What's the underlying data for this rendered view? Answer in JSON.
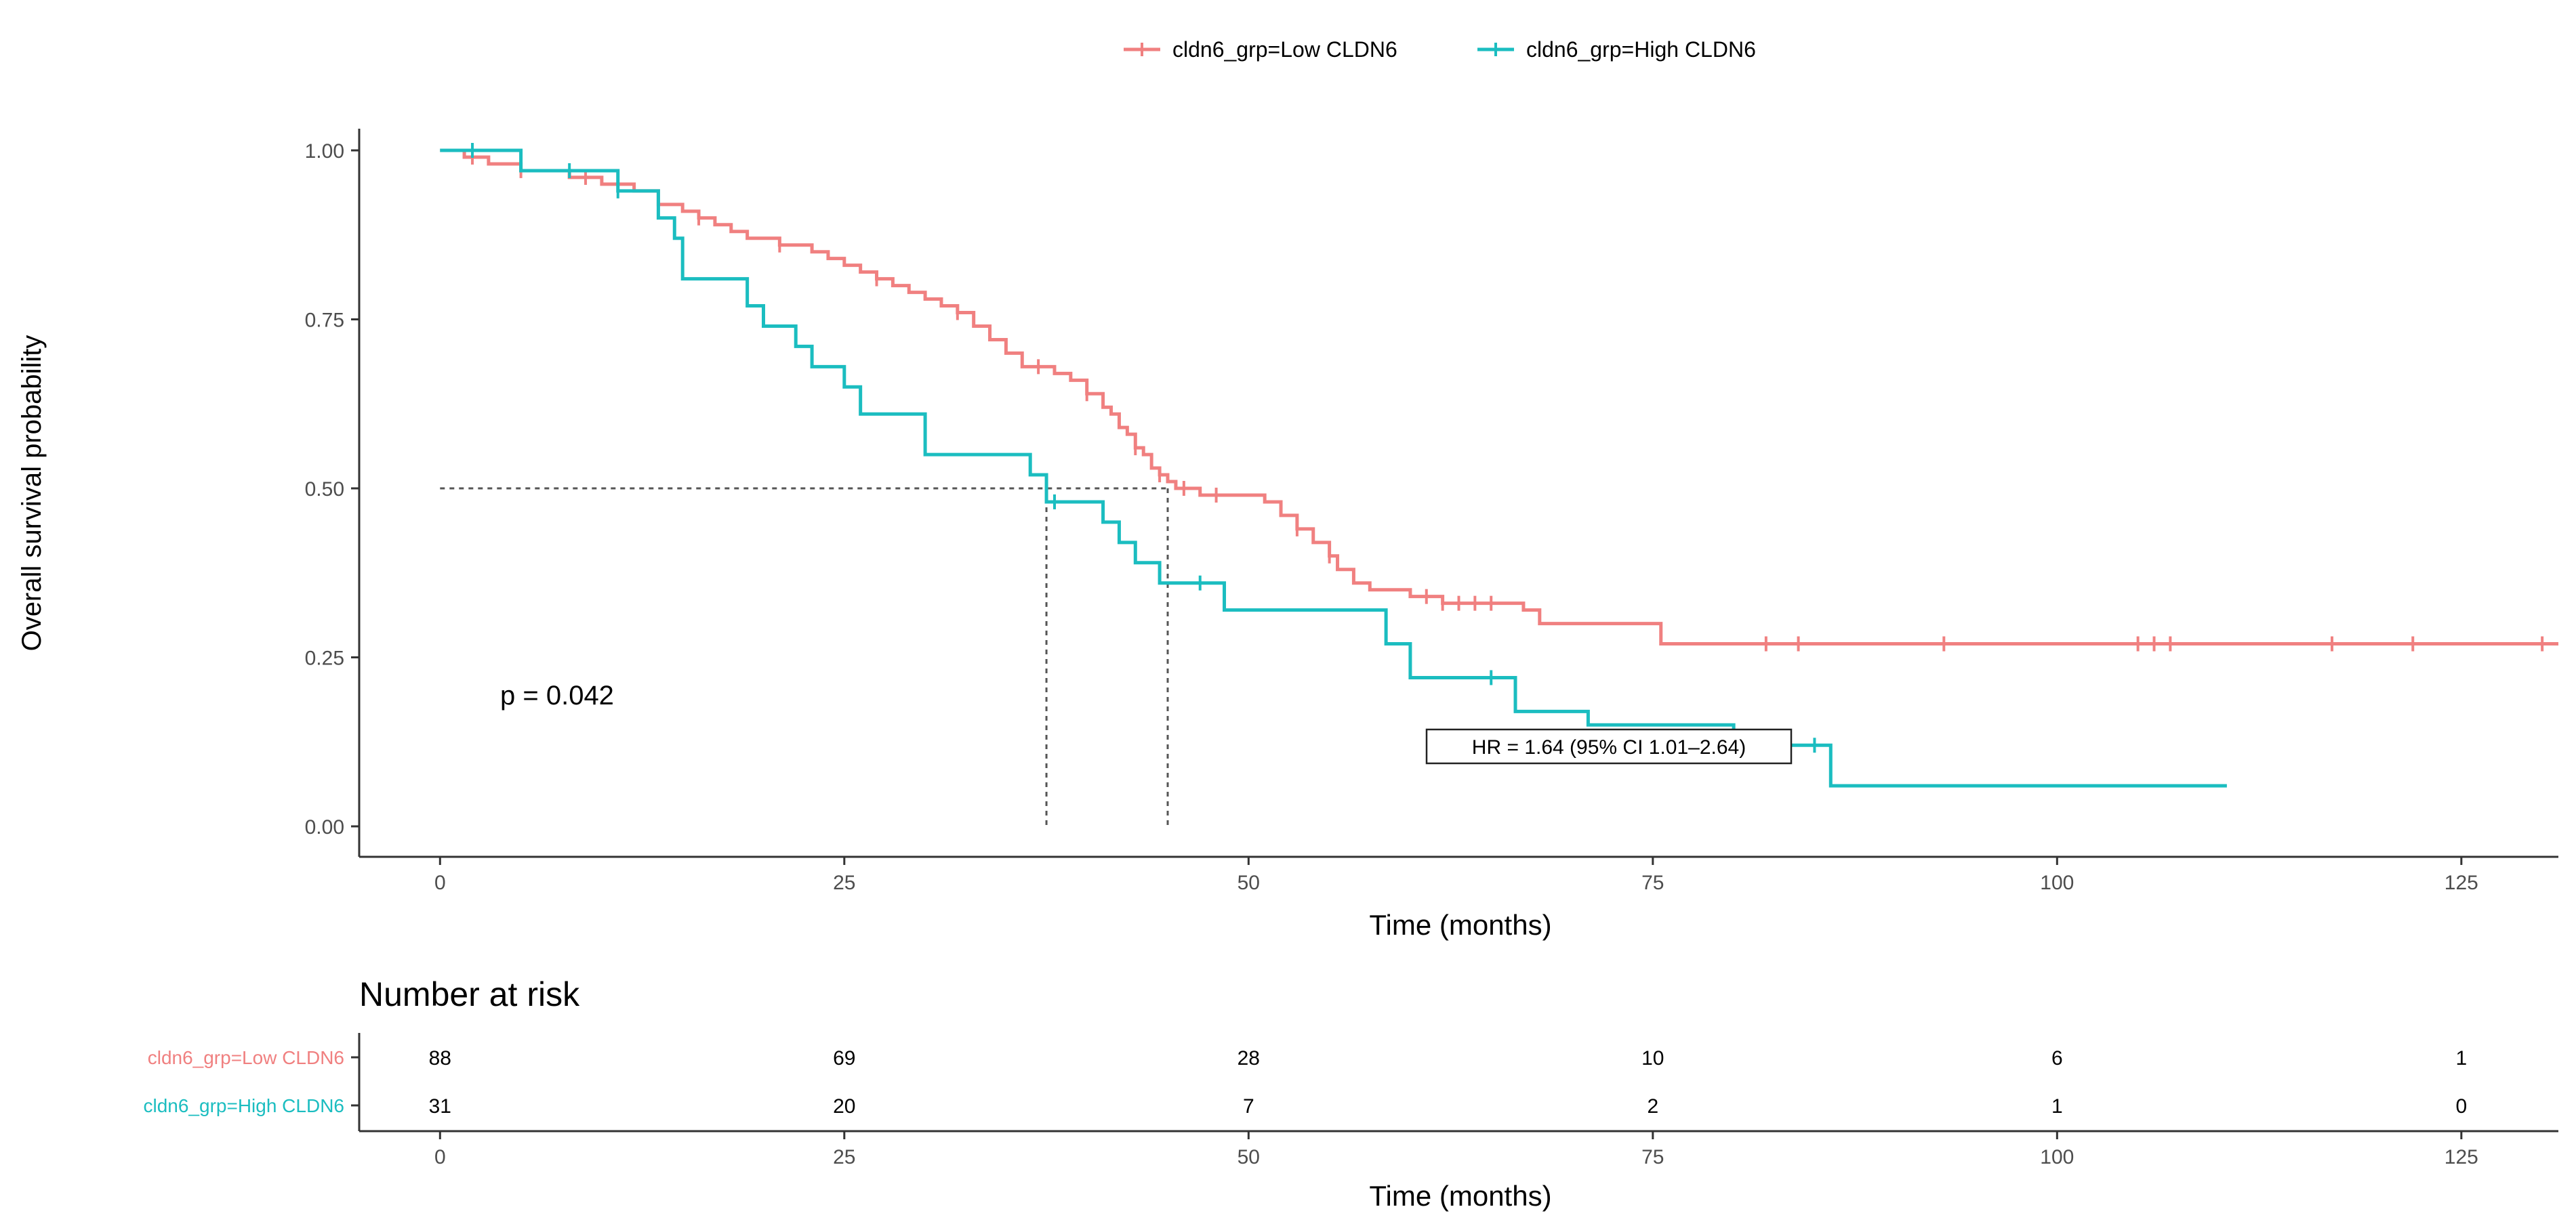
{
  "colors": {
    "low": "#F08080",
    "high": "#1BBDC0",
    "axis": "#333333",
    "tick_label": "#4D4D4D",
    "text": "#000000",
    "reference": "#555555",
    "background": "#FFFFFF"
  },
  "legend": {
    "position": "top",
    "items": [
      {
        "label": "cldn6_grp=Low CLDN6",
        "color": "#F08080"
      },
      {
        "label": "cldn6_grp=High CLDN6",
        "color": "#1BBDC0"
      }
    ]
  },
  "annotations": {
    "pvalue": "p = 0.042",
    "hr": "HR = 1.64 (95% CI 1.01–2.64)"
  },
  "chart_data": [
    {
      "type": "line",
      "subtype": "kaplan-meier step",
      "xlabel": "Time (months)",
      "ylabel": "Overall survival probability",
      "xlim": [
        -5,
        131
      ],
      "ylim": [
        0,
        1
      ],
      "xticks": [
        0,
        25,
        50,
        75,
        100,
        125
      ],
      "yticks": [
        0,
        0.25,
        0.5,
        0.75,
        1
      ],
      "ytick_labels": [
        "0.00",
        "0.25",
        "0.50",
        "0.75",
        "1.00"
      ],
      "grid": false,
      "median_reference": {
        "y": 0.5,
        "medians": [
          {
            "series": "cldn6_grp=High CLDN6",
            "x": 37.5
          },
          {
            "series": "cldn6_grp=Low CLDN6",
            "x": 45
          }
        ]
      },
      "series": [
        {
          "name": "cldn6_grp=Low CLDN6",
          "color": "#F08080",
          "steps": [
            [
              0,
              1.0
            ],
            [
              1.5,
              0.99
            ],
            [
              3,
              0.98
            ],
            [
              5,
              0.97
            ],
            [
              8,
              0.96
            ],
            [
              10,
              0.95
            ],
            [
              12,
              0.94
            ],
            [
              13.5,
              0.92
            ],
            [
              15,
              0.91
            ],
            [
              16,
              0.9
            ],
            [
              17,
              0.89
            ],
            [
              18,
              0.88
            ],
            [
              19,
              0.87
            ],
            [
              21,
              0.86
            ],
            [
              23,
              0.85
            ],
            [
              24,
              0.84
            ],
            [
              25,
              0.83
            ],
            [
              26,
              0.82
            ],
            [
              27,
              0.81
            ],
            [
              28,
              0.8
            ],
            [
              29,
              0.79
            ],
            [
              30,
              0.78
            ],
            [
              31,
              0.77
            ],
            [
              32,
              0.76
            ],
            [
              33,
              0.74
            ],
            [
              34,
              0.72
            ],
            [
              35,
              0.7
            ],
            [
              36,
              0.68
            ],
            [
              38,
              0.67
            ],
            [
              39,
              0.66
            ],
            [
              40,
              0.64
            ],
            [
              41,
              0.62
            ],
            [
              41.5,
              0.61
            ],
            [
              42,
              0.59
            ],
            [
              42.5,
              0.58
            ],
            [
              43,
              0.56
            ],
            [
              43.5,
              0.55
            ],
            [
              44,
              0.53
            ],
            [
              44.5,
              0.52
            ],
            [
              45,
              0.51
            ],
            [
              45.5,
              0.5
            ],
            [
              47,
              0.49
            ],
            [
              51,
              0.48
            ],
            [
              52,
              0.46
            ],
            [
              53,
              0.44
            ],
            [
              54,
              0.42
            ],
            [
              55,
              0.4
            ],
            [
              55.5,
              0.38
            ],
            [
              56.5,
              0.36
            ],
            [
              57.5,
              0.35
            ],
            [
              60,
              0.34
            ],
            [
              62,
              0.33
            ],
            [
              67,
              0.32
            ],
            [
              68,
              0.3
            ],
            [
              75.5,
              0.27
            ],
            [
              131,
              0.27
            ]
          ],
          "censor_x": [
            2,
            5,
            9,
            16,
            21,
            27,
            32,
            37,
            40,
            43,
            44.5,
            46,
            48,
            53,
            55,
            61,
            62,
            63,
            64,
            65,
            82,
            84,
            93,
            105,
            106,
            107,
            117,
            122,
            130
          ]
        },
        {
          "name": "cldn6_grp=High CLDN6",
          "color": "#1BBDC0",
          "steps": [
            [
              0,
              1.0
            ],
            [
              5,
              0.97
            ],
            [
              11,
              0.94
            ],
            [
              13.5,
              0.9
            ],
            [
              14.5,
              0.87
            ],
            [
              15,
              0.81
            ],
            [
              19,
              0.77
            ],
            [
              20,
              0.74
            ],
            [
              22,
              0.71
            ],
            [
              23,
              0.68
            ],
            [
              25,
              0.65
            ],
            [
              26,
              0.61
            ],
            [
              30,
              0.55
            ],
            [
              36.5,
              0.52
            ],
            [
              37.5,
              0.48
            ],
            [
              41,
              0.45
            ],
            [
              42,
              0.42
            ],
            [
              43,
              0.39
            ],
            [
              44.5,
              0.36
            ],
            [
              48.5,
              0.32
            ],
            [
              58.5,
              0.27
            ],
            [
              60,
              0.22
            ],
            [
              66.5,
              0.17
            ],
            [
              71,
              0.15
            ],
            [
              80,
              0.12
            ],
            [
              86,
              0.06
            ],
            [
              110.5,
              0.06
            ]
          ],
          "censor_x": [
            2,
            8,
            11,
            38,
            47,
            65,
            85
          ]
        }
      ]
    },
    {
      "type": "table",
      "title": "Number at risk",
      "xlabel": "Time (months)",
      "xlim": [
        -5,
        131
      ],
      "xticks": [
        0,
        25,
        50,
        75,
        100,
        125
      ],
      "rows": [
        {
          "name": "cldn6_grp=Low CLDN6",
          "color": "#F08080",
          "values": [
            88,
            69,
            28,
            10,
            6,
            1
          ]
        },
        {
          "name": "cldn6_grp=High CLDN6",
          "color": "#1BBDC0",
          "values": [
            31,
            20,
            7,
            2,
            1,
            0
          ]
        }
      ]
    }
  ]
}
